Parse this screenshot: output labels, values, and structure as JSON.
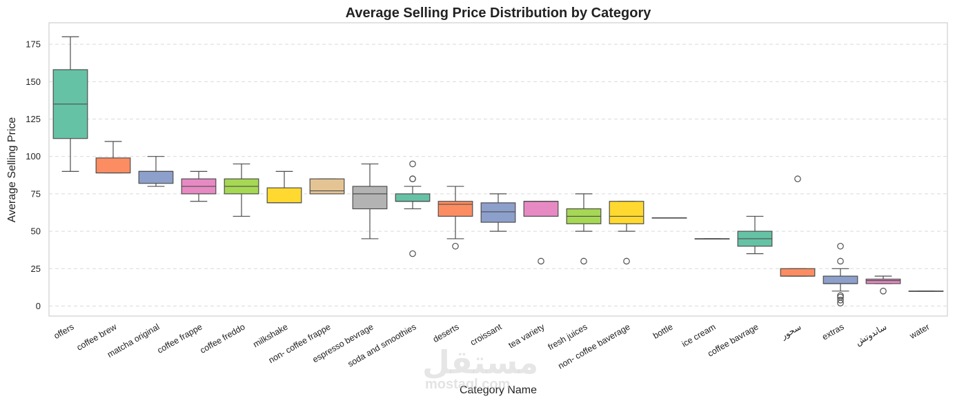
{
  "chart_data": {
    "type": "boxplot",
    "title": "Average Selling Price Distribution by Category",
    "xlabel": "Category Name",
    "ylabel": "Average Selling Price",
    "ylim": [
      -6,
      190
    ],
    "yticks": [
      0,
      25,
      50,
      75,
      100,
      125,
      150,
      175
    ],
    "grid": "horizontal dashed",
    "watermark": {
      "main": "مستقل",
      "sub": "mostaql.com"
    },
    "categories": [
      {
        "name": "offers",
        "color": "#66c2a5",
        "whislo": 90,
        "q1": 112,
        "med": 135,
        "q3": 158,
        "whishi": 180,
        "fliers": []
      },
      {
        "name": "coffee brew",
        "color": "#fc8d62",
        "whislo": 89,
        "q1": 89,
        "med": 89,
        "q3": 99,
        "whishi": 110,
        "fliers": []
      },
      {
        "name": "matcha original",
        "color": "#8da0cb",
        "whislo": 80,
        "q1": 82,
        "med": 90,
        "q3": 90,
        "whishi": 100,
        "fliers": []
      },
      {
        "name": "coffee frappe",
        "color": "#e78ac3",
        "whislo": 70,
        "q1": 75,
        "med": 80,
        "q3": 85,
        "whishi": 90,
        "fliers": []
      },
      {
        "name": "coffee freddo",
        "color": "#a6d854",
        "whislo": 60,
        "q1": 75,
        "med": 80,
        "q3": 85,
        "whishi": 95,
        "fliers": []
      },
      {
        "name": "milkshake",
        "color": "#ffd92f",
        "whislo": 69,
        "q1": 69,
        "med": 69,
        "q3": 79,
        "whishi": 90,
        "fliers": []
      },
      {
        "name": "non- coffee frappe",
        "color": "#e5c494",
        "whislo": 75,
        "q1": 75,
        "med": 77,
        "q3": 85,
        "whishi": 85,
        "fliers": []
      },
      {
        "name": "espresso bevrage",
        "color": "#b3b3b3",
        "whislo": 45,
        "q1": 65,
        "med": 75,
        "q3": 80,
        "whishi": 95,
        "fliers": []
      },
      {
        "name": "soda and smoothies",
        "color": "#66c2a5",
        "whislo": 65,
        "q1": 70,
        "med": 70,
        "q3": 75,
        "whishi": 80,
        "fliers": [
          35,
          85,
          85,
          95
        ]
      },
      {
        "name": "deserts",
        "color": "#fc8d62",
        "whislo": 45,
        "q1": 60,
        "med": 68,
        "q3": 70,
        "whishi": 80,
        "fliers": [
          40
        ]
      },
      {
        "name": "croissant",
        "color": "#8da0cb",
        "whislo": 50,
        "q1": 56,
        "med": 63,
        "q3": 69,
        "whishi": 75,
        "fliers": []
      },
      {
        "name": "tea variety",
        "color": "#e78ac3",
        "whislo": 60,
        "q1": 60,
        "med": 70,
        "q3": 70,
        "whishi": 70,
        "fliers": [
          30
        ]
      },
      {
        "name": "fresh juices",
        "color": "#a6d854",
        "whislo": 50,
        "q1": 55,
        "med": 60,
        "q3": 65,
        "whishi": 75,
        "fliers": [
          30
        ]
      },
      {
        "name": "non- coffee baverage",
        "color": "#ffd92f",
        "whislo": 50,
        "q1": 55,
        "med": 60,
        "q3": 70,
        "whishi": 70,
        "fliers": [
          30
        ]
      },
      {
        "name": "bottle",
        "color": "#e5c494",
        "whislo": 59,
        "q1": 59,
        "med": 59,
        "q3": 59,
        "whishi": 59,
        "fliers": []
      },
      {
        "name": "ice cream",
        "color": "#b3b3b3",
        "whislo": 45,
        "q1": 45,
        "med": 45,
        "q3": 45,
        "whishi": 45,
        "fliers": []
      },
      {
        "name": "coffee bavrage",
        "color": "#66c2a5",
        "whislo": 35,
        "q1": 40,
        "med": 45,
        "q3": 50,
        "whishi": 60,
        "fliers": []
      },
      {
        "name": "سحور",
        "color": "#fc8d62",
        "whislo": 20,
        "q1": 20,
        "med": 20,
        "q3": 25,
        "whishi": 25,
        "fliers": [
          85
        ]
      },
      {
        "name": "extras",
        "color": "#8da0cb",
        "whislo": 10,
        "q1": 15,
        "med": 15,
        "q3": 20,
        "whishi": 25,
        "fliers": [
          2,
          4,
          6,
          7,
          30,
          40
        ]
      },
      {
        "name": "ساندوتش",
        "color": "#e78ac3",
        "whislo": 15,
        "q1": 15,
        "med": 17,
        "q3": 18,
        "whishi": 20,
        "fliers": [
          10
        ]
      },
      {
        "name": "water",
        "color": "#e5c494",
        "whislo": 10,
        "q1": 10,
        "med": 10,
        "q3": 10,
        "whishi": 10,
        "fliers": []
      }
    ]
  }
}
